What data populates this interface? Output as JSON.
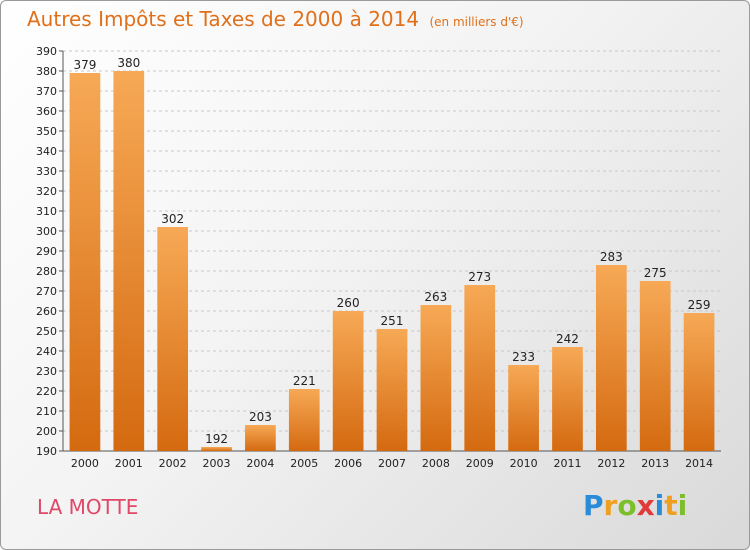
{
  "header": {
    "title": "Autres Impôts et Taxes de 2000 à 2014",
    "unit": "(en milliers d'€)"
  },
  "footer": {
    "commune": "LA MOTTE",
    "logo_text": "Proxiti"
  },
  "colors": {
    "bar_light": "#f7a956",
    "bar_dark": "#d46a10",
    "title": "#e0701a",
    "commune": "#e04868"
  },
  "chart_data": {
    "type": "bar",
    "title": "Autres Impôts et Taxes de 2000 à 2014",
    "subtitle": "(en milliers d'€)",
    "xlabel": "",
    "ylabel": "",
    "categories": [
      "2000",
      "2001",
      "2002",
      "2003",
      "2004",
      "2005",
      "2006",
      "2007",
      "2008",
      "2009",
      "2010",
      "2011",
      "2012",
      "2013",
      "2014"
    ],
    "values": [
      379,
      380,
      302,
      192,
      203,
      221,
      260,
      251,
      263,
      273,
      233,
      242,
      283,
      275,
      259
    ],
    "ylim": [
      190,
      390
    ],
    "ytick_step": 10,
    "grid": true,
    "legend": "none"
  }
}
